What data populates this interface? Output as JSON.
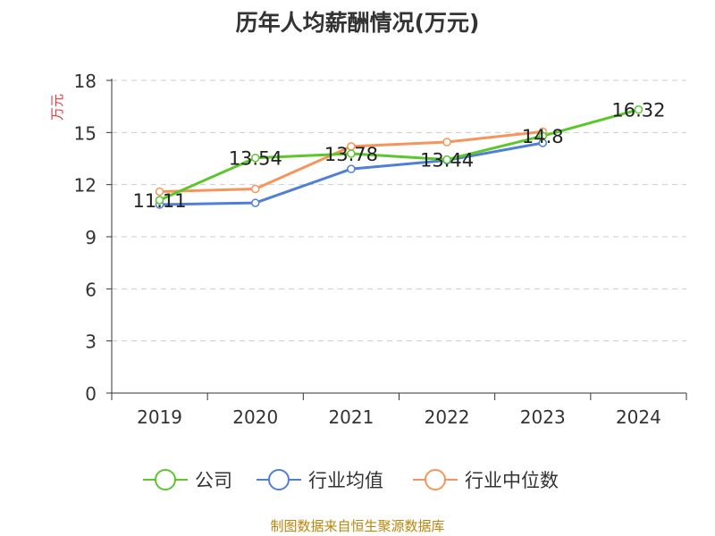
{
  "chart_data": {
    "type": "line",
    "title": "历年人均薪酬情况(万元)",
    "ylabel": "万元",
    "categories": [
      "2019",
      "2020",
      "2021",
      "2022",
      "2023",
      "2024"
    ],
    "ylim": [
      0,
      18
    ],
    "yticks": [
      0,
      3,
      6,
      9,
      12,
      15,
      18
    ],
    "grid": true,
    "legend_position": "bottom",
    "series": [
      {
        "name": "公司",
        "color": "#5cc72b",
        "values": [
          11.11,
          13.54,
          13.78,
          13.44,
          14.8,
          16.32
        ],
        "labels": [
          "11.11",
          "13.54",
          "13.78",
          "13.44",
          "14.8",
          "16.32"
        ]
      },
      {
        "name": "行业均值",
        "color": "#4f7fd6",
        "values": [
          10.85,
          10.95,
          12.9,
          13.4,
          14.4,
          null
        ]
      },
      {
        "name": "行业中位数",
        "color": "#f5955b",
        "values": [
          11.6,
          11.75,
          14.2,
          14.45,
          15.05,
          null
        ]
      }
    ]
  },
  "footer": "制图数据来自恒生聚源数据库"
}
